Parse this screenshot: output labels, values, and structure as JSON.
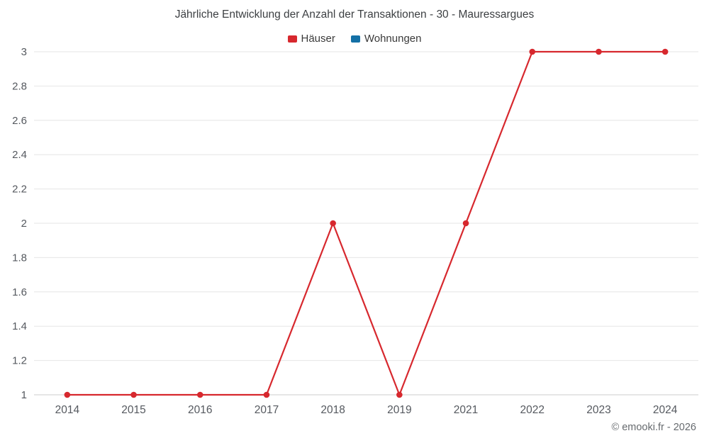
{
  "title": "Jährliche Entwicklung der Anzahl der Transaktionen - 30 - Mauressargues",
  "copyright": "© emooki.fr - 2026",
  "chart_data": {
    "type": "line",
    "title": "Jährliche Entwicklung der Anzahl der Transaktionen - 30 - Mauressargues",
    "categories": [
      "2014",
      "2015",
      "2016",
      "2017",
      "2018",
      "2019",
      "2021",
      "2022",
      "2023",
      "2024"
    ],
    "series": [
      {
        "name": "Häuser",
        "color": "#d7282e",
        "values": [
          1,
          1,
          1,
          1,
          2,
          1,
          2,
          3,
          3,
          3
        ]
      },
      {
        "name": "Wohnungen",
        "color": "#1470a6",
        "values": []
      }
    ],
    "xlabel": "",
    "ylabel": "",
    "ylim": [
      1,
      3
    ],
    "ytick_step": 0.2,
    "grid": true,
    "legend_position": "top",
    "grid_color": "#e6e6e6",
    "axis_line_color": "#cccccc"
  }
}
